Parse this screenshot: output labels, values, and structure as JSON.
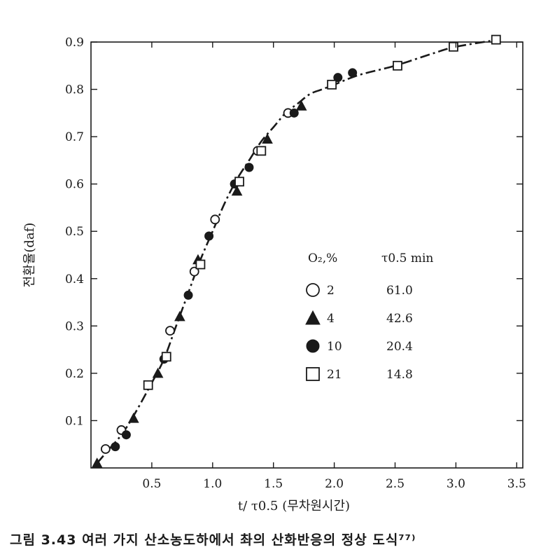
{
  "chart_data": {
    "type": "scatter",
    "xlabel": "t/ τ0.5 (무차원시간)",
    "ylabel": "전환율(daf)",
    "xlim": [
      0,
      3.55
    ],
    "ylim": [
      0,
      0.9
    ],
    "x_ticks": [
      "0.5",
      "1.0",
      "1.5",
      "2.0",
      "2.5",
      "3.0",
      "3.5"
    ],
    "y_ticks": [
      "0.1",
      "0.2",
      "0.3",
      "0.4",
      "0.5",
      "0.6",
      "0.7",
      "0.8",
      "0.9"
    ],
    "grid": false,
    "legend_position": "center-right",
    "legend_header": {
      "col1": "O₂,%",
      "col2": "τ0.5 min"
    },
    "curve": {
      "style": "dash-dot",
      "x": [
        0.05,
        0.15,
        0.25,
        0.35,
        0.5,
        0.6,
        0.7,
        0.8,
        0.9,
        1.0,
        1.1,
        1.2,
        1.3,
        1.4,
        1.5,
        1.6,
        1.7,
        1.8,
        1.9,
        2.0,
        2.2,
        2.5,
        2.8,
        3.0,
        3.35
      ],
      "y": [
        0.01,
        0.04,
        0.07,
        0.11,
        0.18,
        0.23,
        0.3,
        0.37,
        0.44,
        0.5,
        0.56,
        0.61,
        0.65,
        0.69,
        0.72,
        0.75,
        0.77,
        0.79,
        0.8,
        0.81,
        0.83,
        0.85,
        0.875,
        0.89,
        0.905
      ]
    },
    "series": [
      {
        "name": "2",
        "tau": "61.0",
        "marker": "open-circle",
        "x": [
          0.12,
          0.25,
          0.65,
          0.85,
          1.02,
          1.37,
          1.62
        ],
        "y": [
          0.04,
          0.08,
          0.29,
          0.415,
          0.525,
          0.67,
          0.75
        ]
      },
      {
        "name": "4",
        "tau": "42.6",
        "marker": "filled-triangle",
        "x": [
          0.05,
          0.35,
          0.55,
          0.73,
          0.88,
          1.2,
          1.45,
          1.73
        ],
        "y": [
          0.01,
          0.105,
          0.2,
          0.32,
          0.44,
          0.585,
          0.695,
          0.765
        ]
      },
      {
        "name": "10",
        "tau": "20.4",
        "marker": "filled-circle",
        "x": [
          0.2,
          0.29,
          0.6,
          0.8,
          0.97,
          1.18,
          1.3,
          1.67,
          2.03,
          2.15
        ],
        "y": [
          0.045,
          0.07,
          0.23,
          0.365,
          0.49,
          0.6,
          0.635,
          0.75,
          0.825,
          0.835
        ]
      },
      {
        "name": "21",
        "tau": "14.8",
        "marker": "open-square",
        "x": [
          0.47,
          0.62,
          0.9,
          1.22,
          1.4,
          1.98,
          2.52,
          2.98,
          3.33
        ],
        "y": [
          0.175,
          0.235,
          0.43,
          0.605,
          0.67,
          0.81,
          0.85,
          0.89,
          0.905
        ]
      }
    ]
  },
  "caption": "그림 3.43 여러 가지 산소농도하에서 촤의 산화반응의 정상 도식⁷⁷⁾"
}
